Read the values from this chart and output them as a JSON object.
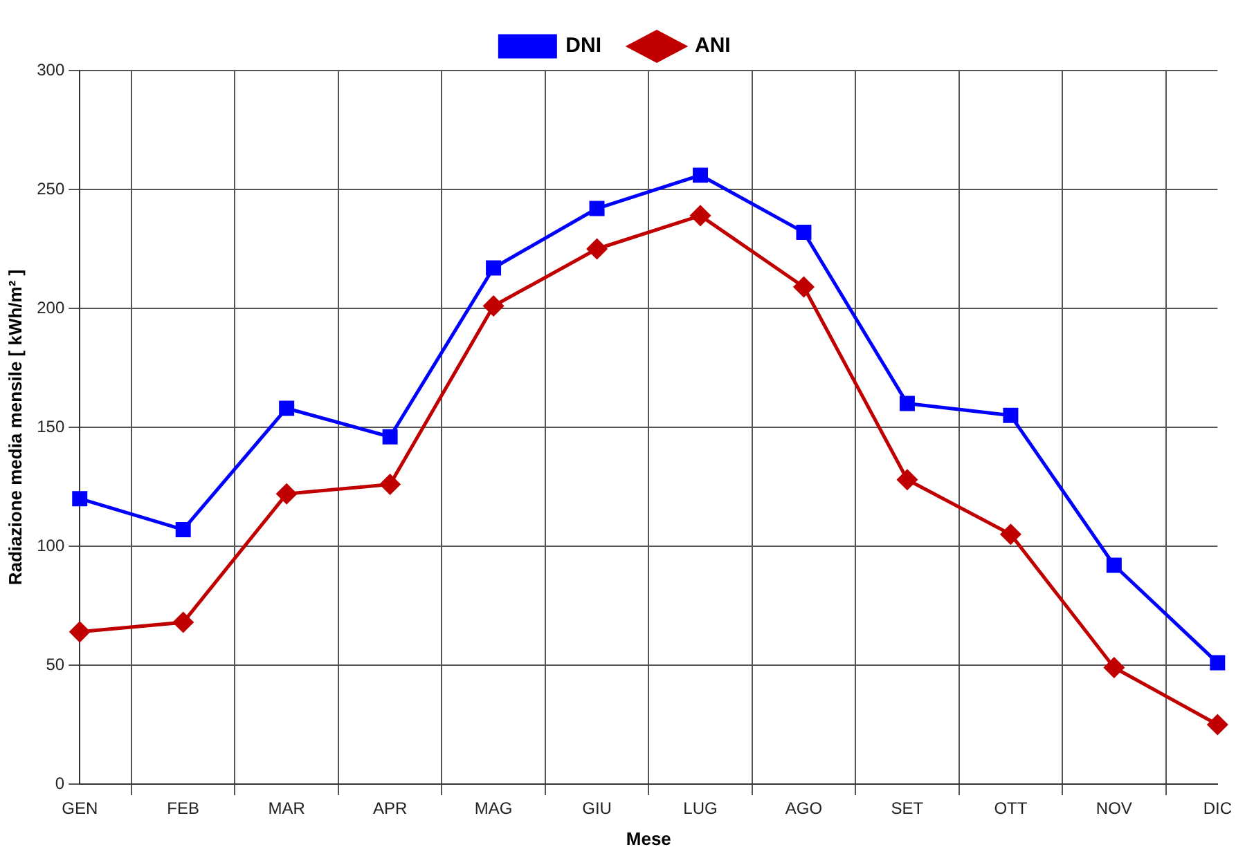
{
  "chart_data": {
    "type": "line",
    "xlabel": "Mese",
    "ylabel": "Radiazione media mensile [ kWh/m² ]",
    "categories": [
      "GEN",
      "FEB",
      "MAR",
      "APR",
      "MAG",
      "GIU",
      "LUG",
      "AGO",
      "SET",
      "OTT",
      "NOV",
      "DIC"
    ],
    "series": [
      {
        "name": "DNI",
        "color": "#0000ff",
        "marker": "square",
        "values": [
          120,
          107,
          158,
          146,
          217,
          242,
          256,
          232,
          160,
          155,
          92,
          51
        ]
      },
      {
        "name": "ANI",
        "color": "#c00000",
        "marker": "diamond",
        "values": [
          64,
          68,
          122,
          126,
          201,
          225,
          239,
          209,
          128,
          105,
          49,
          25
        ]
      }
    ],
    "ylim": [
      0,
      300
    ],
    "yticks": [
      0,
      50,
      100,
      150,
      200,
      250,
      300
    ],
    "grid": true,
    "legend": "top",
    "line_style": "solid"
  }
}
